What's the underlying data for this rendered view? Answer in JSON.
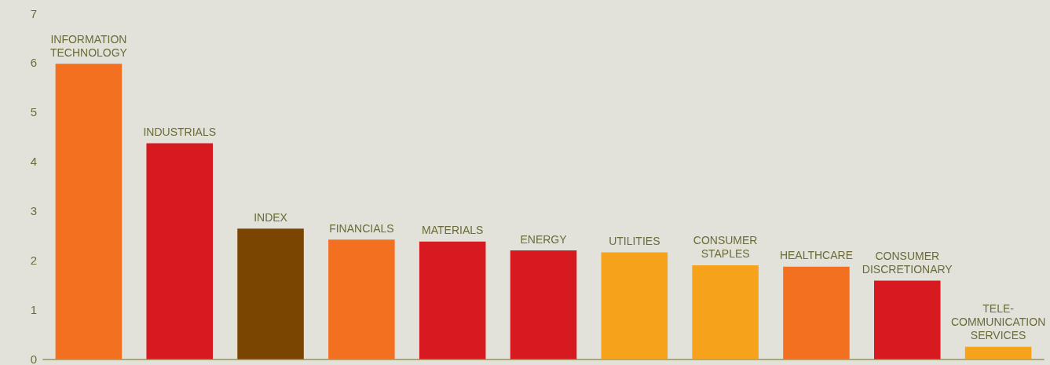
{
  "chart_data": {
    "type": "bar",
    "categories": [
      "INFORMATION\nTECHNOLOGY",
      "INDUSTRIALS",
      "INDEX",
      "FINANCIALS",
      "MATERIALS",
      "ENERGY",
      "UTILITIES",
      "CONSUMER\nSTAPLES",
      "HEALTHCARE",
      "CONSUMER\nDISCRETIONARY",
      "TELE-\nCOMMUNICATION\nSERVICES"
    ],
    "values": [
      5.98,
      4.37,
      2.64,
      2.42,
      2.38,
      2.2,
      2.16,
      1.9,
      1.87,
      1.59,
      0.25
    ],
    "colors": [
      "#f37021",
      "#d71920",
      "#7a4500",
      "#f37021",
      "#d71920",
      "#d71920",
      "#f7a21b",
      "#f7a21b",
      "#f37021",
      "#d71920",
      "#f7a21b"
    ],
    "ylim": [
      0,
      7
    ],
    "yticks": [
      0,
      1,
      2,
      3,
      4,
      5,
      6,
      7
    ],
    "grid": false,
    "tick_labels": "y"
  }
}
